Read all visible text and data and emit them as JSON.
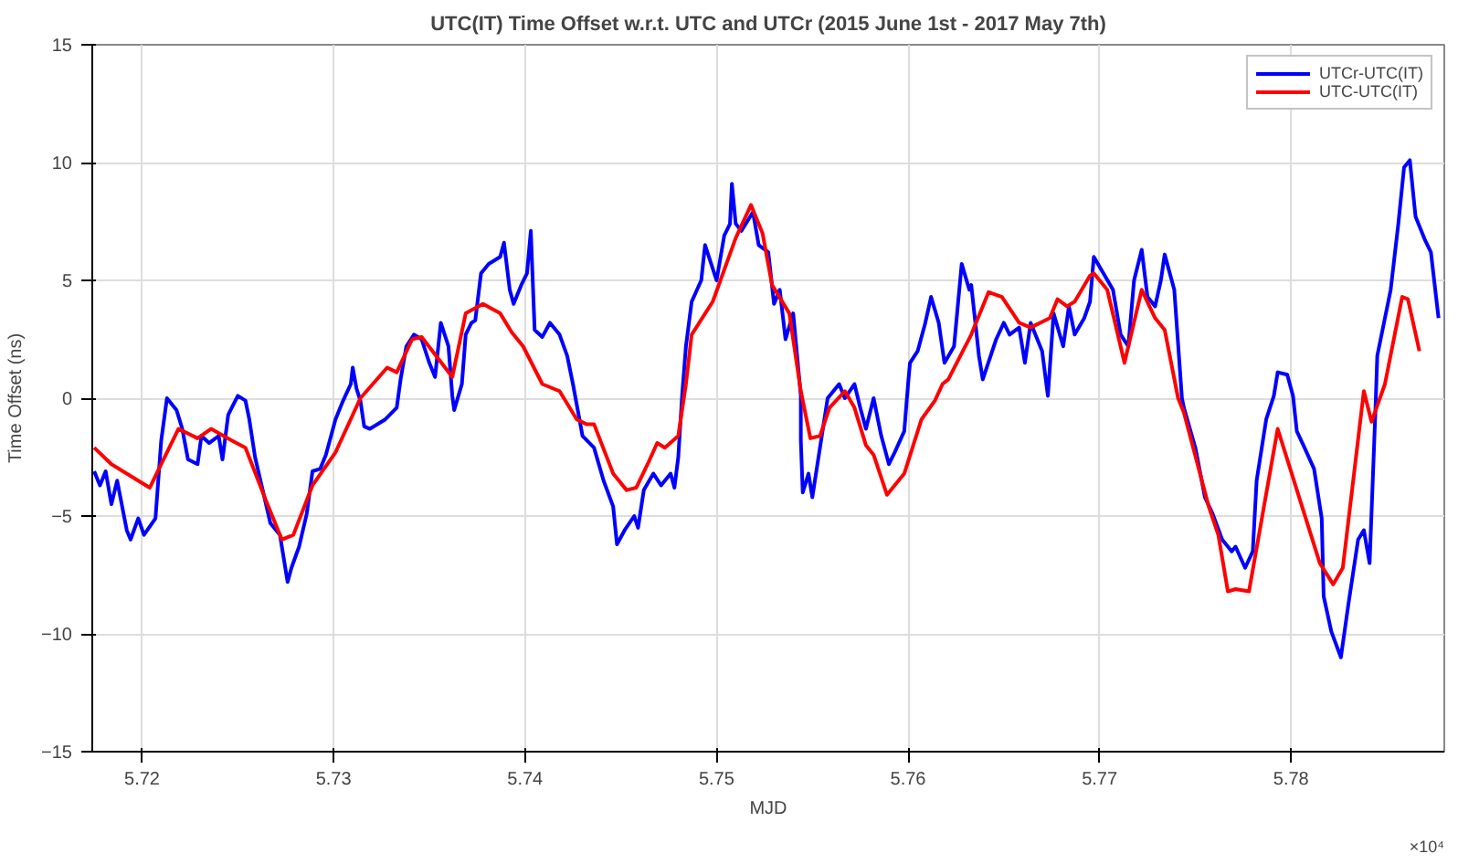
{
  "chart_data": {
    "type": "line",
    "title": "UTC(IT) Time Offset w.r.t. UTC and UTCr (2015 June 1st - 2017 May 7th)",
    "xlabel": "MJD",
    "ylabel": "Time Offset (ns)",
    "xlim": [
      5.7174,
      5.788
    ],
    "ylim": [
      -15,
      15
    ],
    "xticks": [
      5.72,
      5.73,
      5.74,
      5.75,
      5.76,
      5.77,
      5.78
    ],
    "yticks": [
      -15,
      -10,
      -5,
      0,
      5,
      10,
      15
    ],
    "annotations": [
      "×10⁴"
    ],
    "grid": true,
    "legend": "top right",
    "marker": "none",
    "line_style": "solid",
    "series": [
      {
        "name": "UTCr-UTC(IT)",
        "color": "#0000ff",
        "x": [
          5.7175,
          5.7178,
          5.7181,
          5.7184,
          5.7187,
          5.7192,
          5.7194,
          5.7198,
          5.7201,
          5.7207,
          5.721,
          5.7213,
          5.7218,
          5.7221,
          5.7224,
          5.7229,
          5.7231,
          5.7235,
          5.724,
          5.7242,
          5.7245,
          5.725,
          5.7254,
          5.7256,
          5.7259,
          5.7263,
          5.7267,
          5.7272,
          5.7276,
          5.7278,
          5.7282,
          5.7286,
          5.7289,
          5.7293,
          5.7296,
          5.7301,
          5.7305,
          5.7309,
          5.731,
          5.7312,
          5.7314,
          5.7316,
          5.7319,
          5.7327,
          5.7333,
          5.7335,
          5.7338,
          5.7342,
          5.7346,
          5.735,
          5.7353,
          5.7356,
          5.736,
          5.7362,
          5.7363,
          5.7367,
          5.7369,
          5.7372,
          5.7374,
          5.7377,
          5.7381,
          5.7387,
          5.7389,
          5.7392,
          5.7394,
          5.7398,
          5.7401,
          5.7403,
          5.7405,
          5.7409,
          5.7413,
          5.7418,
          5.7422,
          5.7425,
          5.743,
          5.7436,
          5.7441,
          5.7446,
          5.7448,
          5.7452,
          5.7457,
          5.7459,
          5.7462,
          5.7467,
          5.7471,
          5.7476,
          5.7478,
          5.748,
          5.7482,
          5.7484,
          5.7487,
          5.7492,
          5.7494,
          5.7498,
          5.75,
          5.7504,
          5.7507,
          5.7508,
          5.751,
          5.7513,
          5.7519,
          5.7522,
          5.7527,
          5.753,
          5.7533,
          5.7536,
          5.754,
          5.7544,
          5.7544,
          5.7545,
          5.7548,
          5.755,
          5.7554,
          5.7558,
          5.7564,
          5.7567,
          5.7572,
          5.7575,
          5.7578,
          5.7582,
          5.7586,
          5.759,
          5.7593,
          5.7598,
          5.76,
          5.7601,
          5.7605,
          5.7609,
          5.7612,
          5.7616,
          5.7619,
          5.7624,
          5.7628,
          5.7632,
          5.7633,
          5.7637,
          5.7639,
          5.7646,
          5.765,
          5.7653,
          5.7658,
          5.7661,
          5.7664,
          5.767,
          5.7673,
          5.7676,
          5.7681,
          5.7684,
          5.7687,
          5.7692,
          5.7695,
          5.7697,
          5.7702,
          5.7707,
          5.7711,
          5.7715,
          5.7718,
          5.7722,
          5.7725,
          5.7729,
          5.7732,
          5.7734,
          5.7739,
          5.7743,
          5.7744,
          5.775,
          5.7755,
          5.7759,
          5.7764,
          5.7769,
          5.7771,
          5.7776,
          5.778,
          5.7782,
          5.7787,
          5.7791,
          5.7793,
          5.7798,
          5.7801,
          5.7803,
          5.7807,
          5.7812,
          5.7816,
          5.7817,
          5.7821,
          5.7826,
          5.783,
          5.7835,
          5.7838,
          5.7841,
          5.7844,
          5.7845,
          5.7852,
          5.7856,
          5.7859,
          5.7862,
          5.7865,
          5.787,
          5.7873,
          5.7877
        ],
        "values": [
          -3.1,
          -3.7,
          -3.1,
          -4.5,
          -3.5,
          -5.6,
          -6.0,
          -5.1,
          -5.8,
          -5.1,
          -1.8,
          0,
          -0.5,
          -1.3,
          -2.6,
          -2.8,
          -1.6,
          -1.9,
          -1.6,
          -2.6,
          -0.7,
          0.1,
          -0.1,
          -0.9,
          -2.5,
          -3.9,
          -5.3,
          -5.8,
          -7.8,
          -7.2,
          -6.3,
          -4.9,
          -3.1,
          -3.0,
          -2.4,
          -0.9,
          -0.1,
          0.6,
          1.3,
          0.4,
          -0.1,
          -1.2,
          -1.3,
          -0.9,
          -0.4,
          0.8,
          2.2,
          2.7,
          2.5,
          1.5,
          0.9,
          3.2,
          2.2,
          0.1,
          -0.5,
          0.6,
          2.7,
          3.2,
          3.3,
          5.3,
          5.7,
          6.0,
          6.6,
          4.6,
          4.0,
          4.8,
          5.3,
          7.1,
          2.9,
          2.6,
          3.2,
          2.7,
          1.8,
          0.6,
          -1.6,
          -2.1,
          -3.5,
          -4.6,
          -6.2,
          -5.6,
          -5.0,
          -5.5,
          -3.9,
          -3.2,
          -3.7,
          -3.2,
          -3.8,
          -2.5,
          0.1,
          2.2,
          4.1,
          5.0,
          6.5,
          5.5,
          5.0,
          6.9,
          7.4,
          9.1,
          7.4,
          7.1,
          7.9,
          6.5,
          6.2,
          4.0,
          4.6,
          2.5,
          3.6,
          0.1,
          -1.8,
          -4.0,
          -3.2,
          -4.2,
          -2.1,
          0,
          0.6,
          0,
          0.6,
          -0.4,
          -1.3,
          0,
          -1.6,
          -2.8,
          -2.3,
          -1.4,
          0.6,
          1.5,
          2.0,
          3.2,
          4.3,
          3.2,
          1.5,
          2.2,
          5.7,
          4.6,
          4.8,
          1.8,
          0.8,
          2.5,
          3.2,
          2.7,
          3.0,
          1.5,
          3.2,
          2.0,
          0.1,
          3.6,
          2.2,
          3.9,
          2.7,
          3.4,
          4.1,
          6.0,
          5.3,
          4.6,
          2.7,
          2.2,
          5.0,
          6.3,
          4.3,
          3.9,
          5.0,
          6.1,
          4.6,
          0,
          -0.4,
          -2.1,
          -4.2,
          -4.9,
          -6.0,
          -6.5,
          -6.3,
          -7.2,
          -6.5,
          -3.5,
          -0.9,
          0.1,
          1.1,
          1.0,
          0.1,
          -1.4,
          -2.1,
          -3.0,
          -5.1,
          -8.4,
          -9.9,
          -11.0,
          -8.7,
          -6.0,
          -5.6,
          -7.0,
          -0.6,
          1.8,
          4.6,
          7.4,
          9.8,
          10.1,
          7.7,
          6.7,
          6.2,
          3.4
        ]
      },
      {
        "name": "UTC-UTC(IT)",
        "color": "#ff0000",
        "x": [
          5.7175,
          5.7184,
          5.7204,
          5.7219,
          5.7229,
          5.7236,
          5.7247,
          5.7254,
          5.7264,
          5.7273,
          5.7279,
          5.7289,
          5.7301,
          5.7314,
          5.7328,
          5.7333,
          5.7341,
          5.7346,
          5.7362,
          5.7369,
          5.7378,
          5.7387,
          5.7393,
          5.7399,
          5.7409,
          5.7418,
          5.7421,
          5.7427,
          5.7432,
          5.7436,
          5.7446,
          5.7453,
          5.7458,
          5.7464,
          5.7469,
          5.7473,
          5.748,
          5.7484,
          5.7487,
          5.7498,
          5.751,
          5.7518,
          5.7524,
          5.7529,
          5.7538,
          5.7544,
          5.7549,
          5.7554,
          5.7559,
          5.7567,
          5.7572,
          5.7578,
          5.7582,
          5.7589,
          5.7598,
          5.7607,
          5.7614,
          5.7618,
          5.7621,
          5.7633,
          5.7642,
          5.7649,
          5.7658,
          5.7664,
          5.7674,
          5.7678,
          5.7683,
          5.7687,
          5.7695,
          5.7697,
          5.7704,
          5.7713,
          5.7722,
          5.7729,
          5.7734,
          5.7741,
          5.7744,
          5.7757,
          5.7762,
          5.7767,
          5.7771,
          5.7778,
          5.7793,
          5.7815,
          5.7822,
          5.7827,
          5.7838,
          5.7842,
          5.7849,
          5.7858,
          5.7861,
          5.7867
        ],
        "values": [
          -2.1,
          -2.8,
          -3.8,
          -1.3,
          -1.7,
          -1.3,
          -1.8,
          -2.1,
          -4.2,
          -6.0,
          -5.8,
          -3.7,
          -2.3,
          0,
          1.3,
          1.1,
          2.5,
          2.6,
          0.9,
          3.6,
          4.0,
          3.6,
          2.8,
          2.2,
          0.6,
          0.3,
          -0.1,
          -0.9,
          -1.1,
          -1.1,
          -3.2,
          -3.9,
          -3.8,
          -2.8,
          -1.9,
          -2.1,
          -1.6,
          0.6,
          2.7,
          4.1,
          6.8,
          8.2,
          7.0,
          4.8,
          3.6,
          0.3,
          -1.7,
          -1.6,
          -0.4,
          0.3,
          -0.4,
          -2.0,
          -2.4,
          -4.1,
          -3.2,
          -0.9,
          -0.1,
          0.6,
          0.8,
          2.7,
          4.5,
          4.3,
          3.2,
          3.0,
          3.4,
          4.2,
          3.9,
          4.1,
          5.2,
          5.3,
          4.6,
          1.5,
          4.6,
          3.4,
          2.9,
          0,
          -0.6,
          -4.6,
          -5.8,
          -8.2,
          -8.1,
          -8.2,
          -1.3,
          -7.0,
          -7.9,
          -7.2,
          0.3,
          -1.0,
          0.6,
          4.3,
          4.2,
          2.0
        ]
      }
    ]
  }
}
